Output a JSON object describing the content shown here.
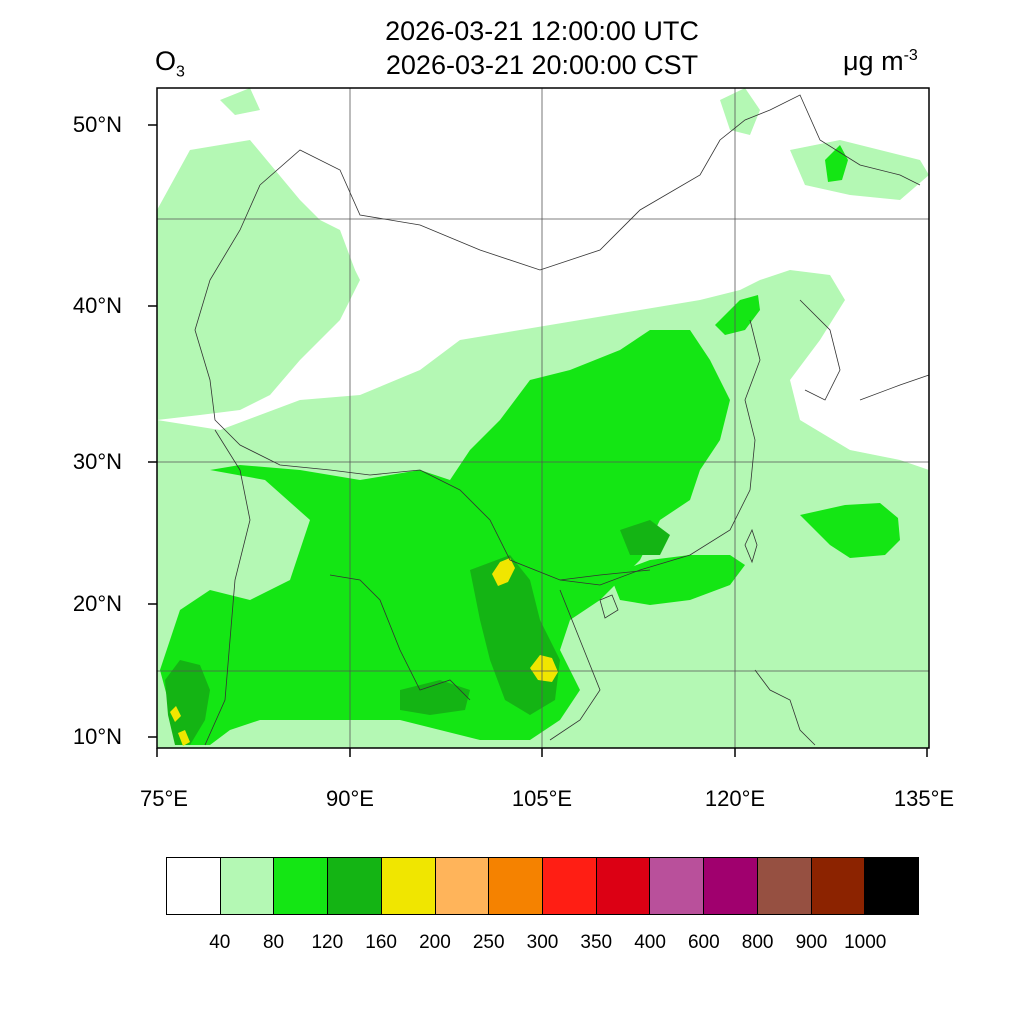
{
  "title": {
    "line1": "2026-03-21 12:00:00 UTC",
    "line2": "2026-03-21 20:00:00 CST"
  },
  "variable": {
    "name": "O",
    "subscript": "3"
  },
  "units": {
    "base": "μg m",
    "exponent": "-3"
  },
  "axes": {
    "lat_labels": [
      "50°N",
      "40°N",
      "30°N",
      "20°N",
      "10°N"
    ],
    "lon_labels": [
      "75°E",
      "90°E",
      "105°E",
      "120°E",
      "135°E"
    ]
  },
  "colorbar": {
    "colors": [
      "#ffffff",
      "#b4f8b4",
      "#14e614",
      "#14b414",
      "#f0e600",
      "#ffb45a",
      "#f58200",
      "#ff1e14",
      "#dc0014",
      "#b9509b",
      "#a0006e",
      "#965041",
      "#8c2300",
      "#000000"
    ],
    "labels": [
      "40",
      "80",
      "120",
      "160",
      "200",
      "250",
      "300",
      "350",
      "400",
      "600",
      "800",
      "900",
      "1000"
    ]
  },
  "colors": {
    "light_green": "#b4f8b4",
    "green": "#14e614",
    "dark_green": "#14b414",
    "yellow": "#f0e600",
    "orange": "#ffb45a"
  }
}
